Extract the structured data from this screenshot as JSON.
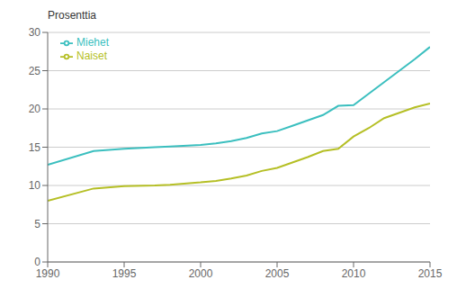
{
  "chart_data": {
    "type": "line",
    "ylabel": "Prosenttia",
    "x": [
      1990,
      1993,
      1995,
      1997,
      1998,
      2000,
      2001,
      2002,
      2003,
      2004,
      2005,
      2006,
      2007,
      2008,
      2009,
      2010,
      2011,
      2012,
      2013,
      2014,
      2015
    ],
    "series": [
      {
        "name": "Miehet",
        "color": "#3bbfbf",
        "values": [
          12.7,
          14.5,
          14.8,
          15.0,
          15.1,
          15.3,
          15.5,
          15.8,
          16.2,
          16.8,
          17.1,
          17.8,
          18.5,
          19.2,
          20.4,
          20.5,
          22.0,
          23.5,
          25.0,
          26.5,
          28.1
        ]
      },
      {
        "name": "Naiset",
        "color": "#b5bf25",
        "values": [
          8.0,
          9.6,
          9.9,
          10.0,
          10.1,
          10.4,
          10.6,
          10.9,
          11.3,
          11.9,
          12.3,
          13.0,
          13.7,
          14.5,
          14.8,
          16.4,
          17.5,
          18.8,
          19.5,
          20.2,
          20.7
        ]
      }
    ],
    "xlim": [
      1990,
      2015
    ],
    "ylim": [
      0,
      30
    ],
    "xticks": [
      1990,
      1995,
      2000,
      2005,
      2010,
      2015
    ],
    "yticks": [
      0,
      5,
      10,
      15,
      20,
      25,
      30
    ],
    "grid": true,
    "legend": "upper left"
  }
}
